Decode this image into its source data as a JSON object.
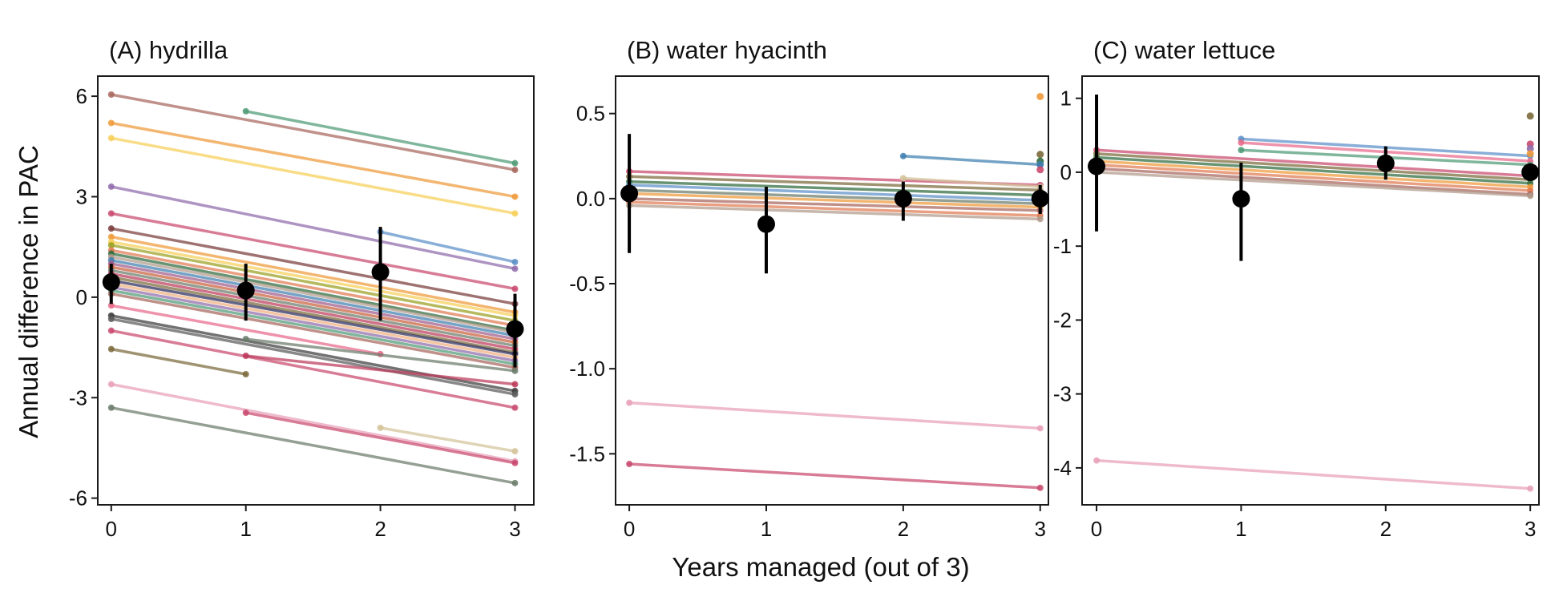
{
  "figure": {
    "ylabel": "Annual difference in PAC",
    "xlabel": "Years managed (out of 3)"
  },
  "colors": {
    "mean_point": "#000000",
    "palette": [
      "#4e9a76",
      "#a7665d",
      "#ef9a3a",
      "#f6cf58",
      "#8f6bab",
      "#5b8fc7",
      "#c94a6e",
      "#7a3b3b",
      "#e86a8a",
      "#9aa020",
      "#2f6b3f",
      "#6b7b6a",
      "#e8a0b8",
      "#d3c39a",
      "#3b3b3b",
      "#e07a50",
      "#b09a8a",
      "#3f7fb0",
      "#c9603c",
      "#7a6a3a",
      "#bd3a5a",
      "#2a2a5a",
      "#a05a8a",
      "#f0b080",
      "#5a5a5a"
    ]
  },
  "chart_data": [
    {
      "type": "line",
      "title": "(A) hydrilla",
      "xlabel": "",
      "ylabel": "Annual difference in PAC",
      "x_ticks": [
        "0",
        "1",
        "2",
        "3"
      ],
      "y_ticks": [
        "6",
        "3",
        "0",
        "-3",
        "-6"
      ],
      "y_tick_values": [
        6,
        3,
        0,
        -3,
        -6
      ],
      "xlim": [
        -0.1,
        3.14
      ],
      "ylim": [
        -6.2,
        6.6
      ],
      "grid": false,
      "means": [
        {
          "x": 0,
          "y": 0.45,
          "lo": -0.2,
          "hi": 1.0
        },
        {
          "x": 1,
          "y": 0.2,
          "lo": -0.7,
          "hi": 1.0
        },
        {
          "x": 2,
          "y": 0.75,
          "lo": -0.7,
          "hi": 2.1
        },
        {
          "x": 3,
          "y": -0.95,
          "lo": -2.1,
          "hi": 0.1
        }
      ],
      "series": [
        {
          "x": [
            0,
            3
          ],
          "y": [
            6.05,
            3.8
          ],
          "color": "#a7665d"
        },
        {
          "x": [
            1,
            3
          ],
          "y": [
            5.55,
            4.0
          ],
          "color": "#4e9a76"
        },
        {
          "x": [
            0,
            3
          ],
          "y": [
            5.2,
            3.0
          ],
          "color": "#ef9a3a"
        },
        {
          "x": [
            0,
            3
          ],
          "y": [
            4.75,
            2.5
          ],
          "color": "#f6cf58"
        },
        {
          "x": [
            0,
            3
          ],
          "y": [
            3.3,
            0.85
          ],
          "color": "#8f6bab"
        },
        {
          "x": [
            2,
            3
          ],
          "y": [
            1.95,
            1.05
          ],
          "color": "#5b8fc7"
        },
        {
          "x": [
            0,
            3
          ],
          "y": [
            2.5,
            0.25
          ],
          "color": "#c94a6e"
        },
        {
          "x": [
            0,
            3
          ],
          "y": [
            2.05,
            -0.2
          ],
          "color": "#7a3b3b"
        },
        {
          "x": [
            0,
            3
          ],
          "y": [
            1.8,
            -0.45
          ],
          "color": "#ef9a3a"
        },
        {
          "x": [
            0,
            3
          ],
          "y": [
            1.65,
            -0.55
          ],
          "color": "#f6cf58"
        },
        {
          "x": [
            0,
            3
          ],
          "y": [
            1.55,
            -0.7
          ],
          "color": "#9aa020"
        },
        {
          "x": [
            0,
            3
          ],
          "y": [
            1.4,
            -0.85
          ],
          "color": "#e07a50"
        },
        {
          "x": [
            0,
            3
          ],
          "y": [
            1.3,
            -1.0
          ],
          "color": "#2f6b3f"
        },
        {
          "x": [
            0,
            3
          ],
          "y": [
            1.2,
            -1.05
          ],
          "color": "#b09a8a"
        },
        {
          "x": [
            0,
            3
          ],
          "y": [
            1.1,
            -1.15
          ],
          "color": "#3f7fb0"
        },
        {
          "x": [
            0,
            3
          ],
          "y": [
            1.0,
            -1.25
          ],
          "color": "#a05a8a"
        },
        {
          "x": [
            0,
            3
          ],
          "y": [
            0.9,
            -1.35
          ],
          "color": "#c9603c"
        },
        {
          "x": [
            0,
            3
          ],
          "y": [
            0.8,
            -1.45
          ],
          "color": "#6b7b6a"
        },
        {
          "x": [
            0,
            3
          ],
          "y": [
            0.7,
            -1.55
          ],
          "color": "#bd3a5a"
        },
        {
          "x": [
            0,
            3
          ],
          "y": [
            0.6,
            -1.65
          ],
          "color": "#7a6a3a"
        },
        {
          "x": [
            0,
            3
          ],
          "y": [
            0.5,
            -1.7
          ],
          "color": "#2a2a5a"
        },
        {
          "x": [
            0,
            3
          ],
          "y": [
            0.4,
            -1.8
          ],
          "color": "#f0b080"
        },
        {
          "x": [
            0,
            3
          ],
          "y": [
            0.3,
            -1.9
          ],
          "color": "#8f6bab"
        },
        {
          "x": [
            0,
            3
          ],
          "y": [
            0.2,
            -2.0
          ],
          "color": "#4e9a76"
        },
        {
          "x": [
            0,
            3
          ],
          "y": [
            0.1,
            -2.1
          ],
          "color": "#a7665d"
        },
        {
          "x": [
            0,
            2
          ],
          "y": [
            -0.25,
            -1.7
          ],
          "color": "#e86a8a"
        },
        {
          "x": [
            0,
            3
          ],
          "y": [
            -0.55,
            -2.8
          ],
          "color": "#3b3b3b"
        },
        {
          "x": [
            0,
            3
          ],
          "y": [
            -0.65,
            -2.9
          ],
          "color": "#5a5a5a"
        },
        {
          "x": [
            0,
            3
          ],
          "y": [
            -1.0,
            -3.3
          ],
          "color": "#c94a6e"
        },
        {
          "x": [
            1,
            3
          ],
          "y": [
            -1.75,
            -2.6
          ],
          "color": "#bd3a5a"
        },
        {
          "x": [
            0,
            1
          ],
          "y": [
            -1.55,
            -2.3
          ],
          "color": "#7a6a3a"
        },
        {
          "x": [
            0,
            3
          ],
          "y": [
            -2.6,
            -4.9
          ],
          "color": "#e8a0b8"
        },
        {
          "x": [
            1,
            3
          ],
          "y": [
            -3.45,
            -4.95
          ],
          "color": "#c94a6e"
        },
        {
          "x": [
            2,
            3
          ],
          "y": [
            -3.9,
            -4.6
          ],
          "color": "#d3c39a"
        },
        {
          "x": [
            0,
            3
          ],
          "y": [
            -3.3,
            -5.55
          ],
          "color": "#6b7b6a"
        },
        {
          "x": [
            1,
            3
          ],
          "y": [
            -1.25,
            -2.2
          ],
          "color": "#6b7b6a"
        }
      ]
    },
    {
      "type": "line",
      "title": "(B) water hyacinth",
      "xlabel": "",
      "ylabel": "",
      "x_ticks": [
        "0",
        "1",
        "2",
        "3"
      ],
      "y_ticks": [
        "0.5",
        "0.0",
        "-0.5",
        "-1.0",
        "-1.5"
      ],
      "y_tick_values": [
        0.5,
        0.0,
        -0.5,
        -1.0,
        -1.5
      ],
      "xlim": [
        -0.1,
        3.06
      ],
      "ylim": [
        -1.8,
        0.72
      ],
      "grid": false,
      "means": [
        {
          "x": 0,
          "y": 0.03,
          "lo": -0.32,
          "hi": 0.38
        },
        {
          "x": 1,
          "y": -0.15,
          "lo": -0.44,
          "hi": 0.07
        },
        {
          "x": 2,
          "y": 0.0,
          "lo": -0.13,
          "hi": 0.1
        },
        {
          "x": 3,
          "y": 0.0,
          "lo": -0.09,
          "hi": 0.08
        }
      ],
      "series": [
        {
          "x": [
            0,
            3
          ],
          "y": [
            0.16,
            0.08
          ],
          "color": "#c94a6e"
        },
        {
          "x": [
            0,
            3
          ],
          "y": [
            0.13,
            0.05
          ],
          "color": "#7a6a3a"
        },
        {
          "x": [
            0,
            3
          ],
          "y": [
            0.1,
            0.02
          ],
          "color": "#2f6b3f"
        },
        {
          "x": [
            0,
            3
          ],
          "y": [
            0.08,
            -0.01
          ],
          "color": "#5b8fc7"
        },
        {
          "x": [
            0,
            3
          ],
          "y": [
            0.05,
            -0.03
          ],
          "color": "#6b7b6a"
        },
        {
          "x": [
            0,
            3
          ],
          "y": [
            0.03,
            -0.05
          ],
          "color": "#ef9a3a"
        },
        {
          "x": [
            0,
            3
          ],
          "y": [
            0.0,
            -0.07
          ],
          "color": "#a7665d"
        },
        {
          "x": [
            0,
            3
          ],
          "y": [
            -0.02,
            -0.1
          ],
          "color": "#e07a50"
        },
        {
          "x": [
            0,
            3
          ],
          "y": [
            -0.04,
            -0.12
          ],
          "color": "#b09a8a"
        },
        {
          "x": [
            2,
            3
          ],
          "y": [
            0.25,
            0.2
          ],
          "color": "#3f7fb0"
        },
        {
          "x": [
            2,
            3
          ],
          "y": [
            0.12,
            0.07
          ],
          "color": "#d3c39a"
        },
        {
          "x": [
            0,
            3
          ],
          "y": [
            -1.2,
            -1.35
          ],
          "color": "#e8a0b8"
        },
        {
          "x": [
            0,
            3
          ],
          "y": [
            -1.56,
            -1.7
          ],
          "color": "#c94a6e"
        }
      ],
      "points": [
        {
          "x": 3,
          "y": 0.6,
          "color": "#ef9a3a"
        },
        {
          "x": 3,
          "y": 0.26,
          "color": "#7a6a3a"
        },
        {
          "x": 3,
          "y": 0.22,
          "color": "#2f6b3f"
        },
        {
          "x": 3,
          "y": 0.2,
          "color": "#3f7fb0"
        },
        {
          "x": 3,
          "y": 0.17,
          "color": "#c94a6e"
        }
      ]
    },
    {
      "type": "line",
      "title": "(C) water lettuce",
      "xlabel": "",
      "ylabel": "",
      "x_ticks": [
        "0",
        "1",
        "2",
        "3"
      ],
      "y_ticks": [
        "1",
        "0",
        "-1",
        "-2",
        "-3",
        "-4"
      ],
      "y_tick_values": [
        1,
        0,
        -1,
        -2,
        -3,
        -4
      ],
      "xlim": [
        -0.1,
        3.06
      ],
      "ylim": [
        -4.5,
        1.3
      ],
      "grid": false,
      "means": [
        {
          "x": 0,
          "y": 0.08,
          "lo": -0.8,
          "hi": 1.05
        },
        {
          "x": 1,
          "y": -0.36,
          "lo": -1.2,
          "hi": 0.13
        },
        {
          "x": 2,
          "y": 0.12,
          "lo": -0.1,
          "hi": 0.35
        },
        {
          "x": 3,
          "y": 0.0,
          "lo": -0.1,
          "hi": 0.08
        }
      ],
      "series": [
        {
          "x": [
            0,
            3
          ],
          "y": [
            0.3,
            -0.05
          ],
          "color": "#c94a6e"
        },
        {
          "x": [
            0,
            3
          ],
          "y": [
            0.25,
            -0.1
          ],
          "color": "#7a6a3a"
        },
        {
          "x": [
            0,
            3
          ],
          "y": [
            0.2,
            -0.15
          ],
          "color": "#2f6b3f"
        },
        {
          "x": [
            0,
            3
          ],
          "y": [
            0.15,
            -0.2
          ],
          "color": "#ef9a3a"
        },
        {
          "x": [
            0,
            3
          ],
          "y": [
            0.1,
            -0.25
          ],
          "color": "#e07a50"
        },
        {
          "x": [
            0,
            3
          ],
          "y": [
            0.05,
            -0.3
          ],
          "color": "#a7665d"
        },
        {
          "x": [
            0,
            3
          ],
          "y": [
            0.0,
            -0.32
          ],
          "color": "#b09a8a"
        },
        {
          "x": [
            1,
            3
          ],
          "y": [
            0.45,
            0.22
          ],
          "color": "#5b8fc7"
        },
        {
          "x": [
            1,
            3
          ],
          "y": [
            0.4,
            0.15
          ],
          "color": "#e86a8a"
        },
        {
          "x": [
            1,
            3
          ],
          "y": [
            0.3,
            0.1
          ],
          "color": "#4e9a76"
        },
        {
          "x": [
            0,
            3
          ],
          "y": [
            -3.9,
            -4.28
          ],
          "color": "#e8a0b8"
        }
      ],
      "points": [
        {
          "x": 3,
          "y": 0.76,
          "color": "#7a6a3a"
        },
        {
          "x": 3,
          "y": 0.38,
          "color": "#c94a6e"
        },
        {
          "x": 3,
          "y": 0.32,
          "color": "#8f6bab"
        },
        {
          "x": 3,
          "y": 0.25,
          "color": "#ef9a3a"
        }
      ]
    }
  ]
}
